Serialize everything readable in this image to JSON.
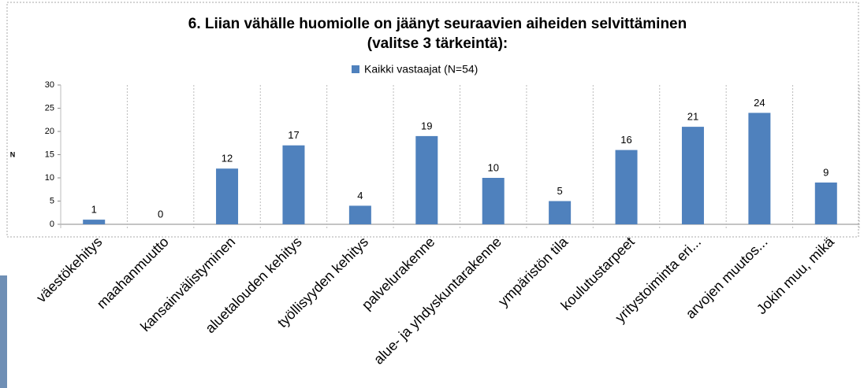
{
  "chart_data": {
    "type": "bar",
    "title": "6. Liian vähälle huomiolle on jäänyt seuraavien aiheiden selvittäminen",
    "subtitle": "(valitse 3 tärkeintä):",
    "y_label": "N",
    "categories": [
      "väestökehitys",
      "maahanmuutto",
      "kansainvälistyminen",
      "aluetalouden kehitys",
      "työllisyyden kehitys",
      "palvelurakenne",
      "alue- ja yhdyskuntarakenne",
      "ympäristön tila",
      "koulutustarpeet",
      "yritystoiminta eri...",
      "arvojen muutos...",
      "Jokin muu, mikä"
    ],
    "series": [
      {
        "name": "Kaikki vastaajat (N=54)",
        "color": "#4f81bd",
        "values": [
          1,
          0,
          12,
          17,
          4,
          19,
          10,
          5,
          16,
          21,
          24,
          9
        ]
      }
    ],
    "ylim": [
      0,
      30
    ],
    "yticks": [
      0,
      5,
      10,
      15,
      20,
      25,
      30
    ],
    "legend": "top"
  }
}
